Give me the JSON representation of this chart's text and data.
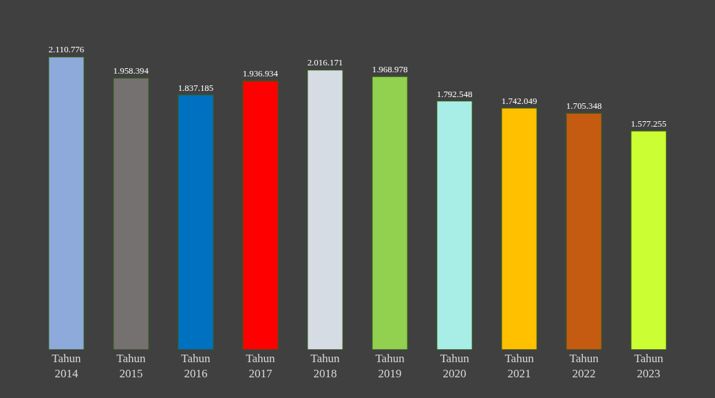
{
  "chart_data": {
    "type": "bar",
    "categories": [
      "Tahun\n2014",
      "Tahun\n2015",
      "Tahun\n2016",
      "Tahun\n2017",
      "Tahun\n2018",
      "Tahun\n2019",
      "Tahun\n2020",
      "Tahun\n2021",
      "Tahun\n2022",
      "Tahun\n2023"
    ],
    "values": [
      2110776,
      1958394,
      1837185,
      1936934,
      2016171,
      1968978,
      1792548,
      1742049,
      1705348,
      1577255
    ],
    "value_labels": [
      "2.110.776",
      "1.958.394",
      "1.837.185",
      "1.936.934",
      "2.016.171",
      "1.968.978",
      "1.792.548",
      "1.742.049",
      "1.705.348",
      "1.577.255"
    ],
    "colors": [
      "#8eaadb",
      "#767171",
      "#0070c0",
      "#ff0000",
      "#d6dce4",
      "#92d050",
      "#a9eee6",
      "#ffc000",
      "#c55a11",
      "#ccff33"
    ],
    "legend": false,
    "grid": false
  }
}
